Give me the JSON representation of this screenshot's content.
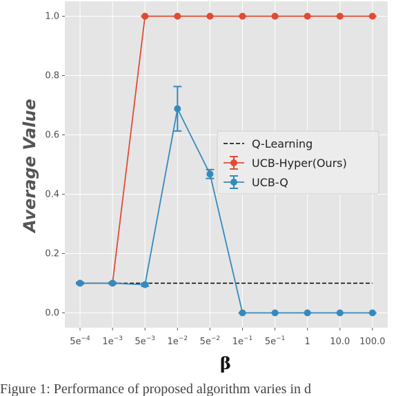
{
  "chart_data": {
    "type": "line",
    "title": "",
    "xlabel": "β",
    "ylabel": "Average Value",
    "categories": [
      "5e-4",
      "1e-3",
      "5e-3",
      "1e-2",
      "5e-2",
      "1e-1",
      "5e-1",
      "1",
      "10.0",
      "100.0"
    ],
    "x_tick_labels": [
      {
        "base": "5e",
        "exp": "−4"
      },
      {
        "base": "1e",
        "exp": "−3"
      },
      {
        "base": "5e",
        "exp": "−3"
      },
      {
        "base": "1e",
        "exp": "−2"
      },
      {
        "base": "5e",
        "exp": "−2"
      },
      {
        "base": "1e",
        "exp": "−1"
      },
      {
        "base": "5e",
        "exp": "−1"
      },
      {
        "base": "1",
        "exp": ""
      },
      {
        "base": "10.0",
        "exp": ""
      },
      {
        "base": "100.0",
        "exp": ""
      }
    ],
    "y_ticks": [
      "0.0",
      "0.2",
      "0.4",
      "0.6",
      "0.8",
      "1.0"
    ],
    "ylim": [
      -0.05,
      1.05
    ],
    "grid": true,
    "legend_position": "center-right",
    "series": [
      {
        "name": "Q-Learning",
        "style": "dashed",
        "color": "#000000",
        "values": [
          0.1,
          0.1,
          0.1,
          0.1,
          0.1,
          0.1,
          0.1,
          0.1,
          0.1,
          0.1
        ]
      },
      {
        "name": "UCB-Hyper(Ours)",
        "style": "errorbar",
        "color": "#e24a33",
        "values": [
          0.1,
          0.1,
          1.0,
          1.0,
          1.0,
          1.0,
          1.0,
          1.0,
          1.0,
          1.0
        ],
        "errors": [
          0,
          0,
          0,
          0,
          0,
          0,
          0,
          0,
          0,
          0
        ]
      },
      {
        "name": "UCB-Q",
        "style": "errorbar",
        "color": "#348abd",
        "values": [
          0.1,
          0.1,
          0.095,
          0.688,
          0.468,
          0.0,
          0.0,
          0.0,
          0.0,
          0.0
        ],
        "errors": [
          0.003,
          0.003,
          0.005,
          0.075,
          0.015,
          0,
          0,
          0,
          0,
          0
        ]
      }
    ]
  },
  "caption": "Figure 1: Performance of proposed algorithm varies in d"
}
